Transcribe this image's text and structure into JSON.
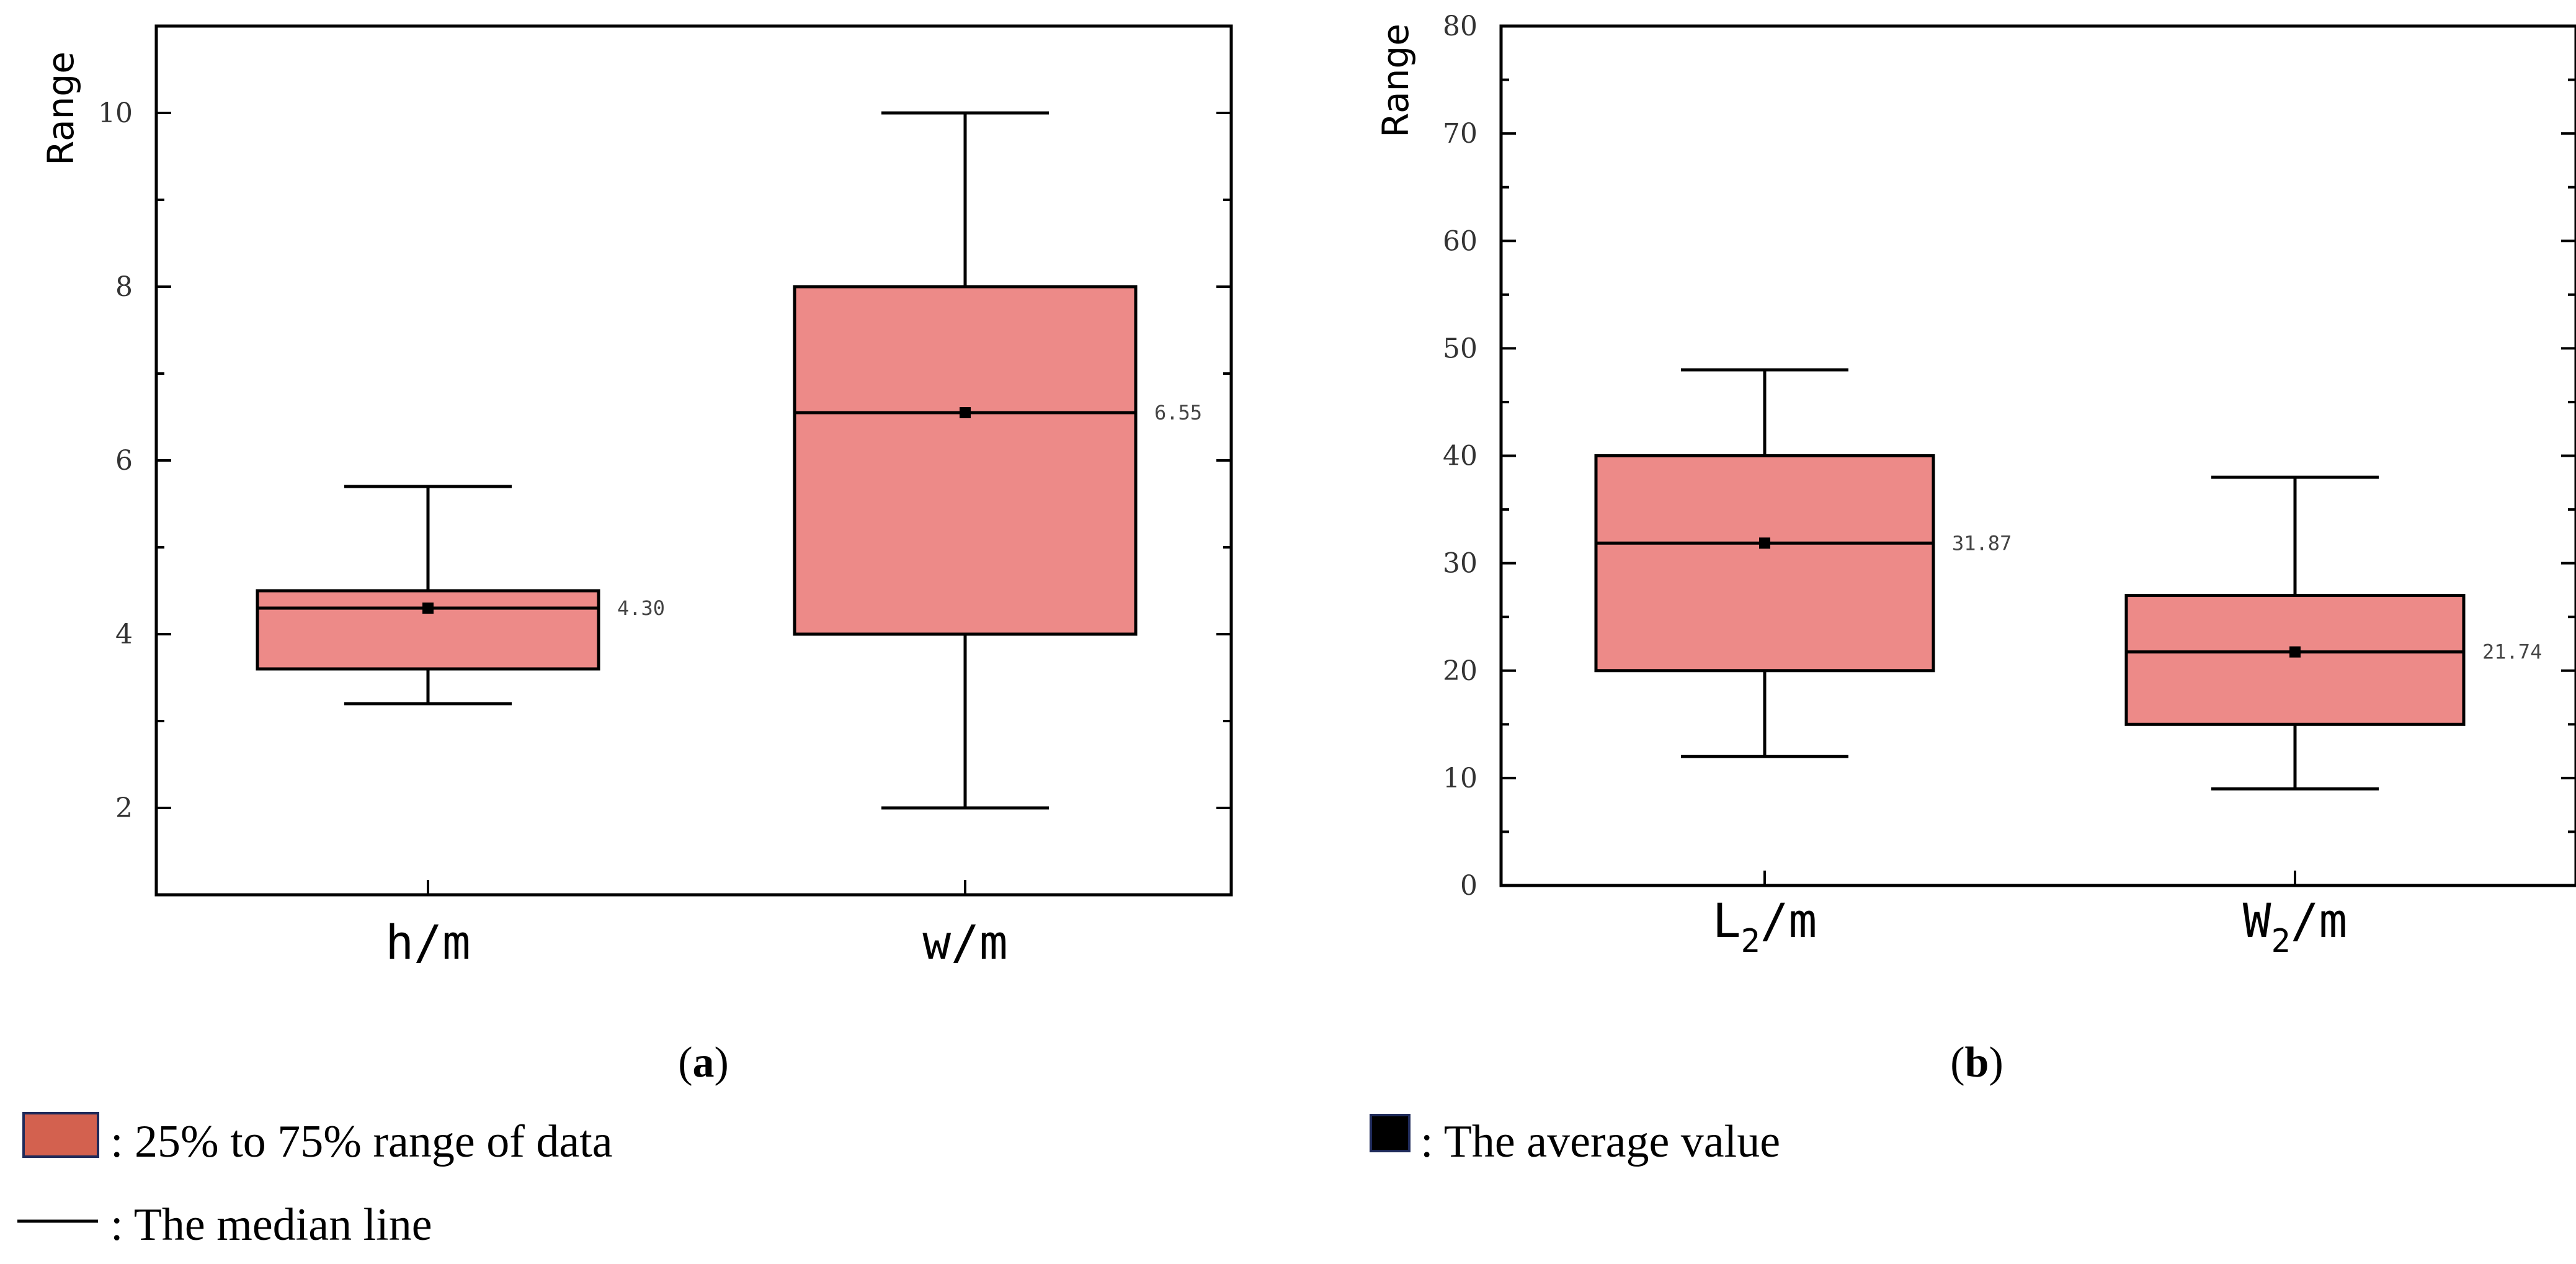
{
  "chart_data": [
    {
      "id": "a",
      "type": "box",
      "caption": "a",
      "ylabel": "Range",
      "ylim": [
        1,
        11
      ],
      "yticks": [
        2,
        4,
        6,
        8,
        10
      ],
      "minor_ticks": true,
      "boxes": [
        {
          "name": "h/m",
          "label_main": "h/m",
          "label_sub": "",
          "label_suffix": "",
          "whisker_low": 3.2,
          "q1": 3.6,
          "median": 4.3,
          "q3": 4.5,
          "whisker_high": 5.7,
          "mean": 4.3,
          "mean_label": "4.30"
        },
        {
          "name": "w/m",
          "label_main": "w/m",
          "label_sub": "",
          "label_suffix": "",
          "whisker_low": 2.0,
          "q1": 4.0,
          "median": 6.55,
          "q3": 8.0,
          "whisker_high": 10.0,
          "mean": 6.55,
          "mean_label": "6.55"
        }
      ]
    },
    {
      "id": "b",
      "type": "box",
      "caption": "b",
      "ylabel": "Range",
      "ylim": [
        0,
        80
      ],
      "yticks": [
        0,
        10,
        20,
        30,
        40,
        50,
        60,
        70,
        80
      ],
      "minor_ticks": true,
      "boxes": [
        {
          "name": "L2/m",
          "label_main": "L",
          "label_sub": "2",
          "label_suffix": "/m",
          "whisker_low": 12,
          "q1": 20,
          "median": 31.87,
          "q3": 40,
          "whisker_high": 48,
          "mean": 31.87,
          "mean_label": "31.87"
        },
        {
          "name": "W2/m",
          "label_main": "W",
          "label_sub": "2",
          "label_suffix": "/m",
          "whisker_low": 9,
          "q1": 15,
          "median": 21.74,
          "q3": 27,
          "whisker_high": 38,
          "mean": 21.74,
          "mean_label": "21.74"
        }
      ]
    }
  ],
  "legend": {
    "box_text": ": 25% to 75% range of data",
    "mean_text": ": The average value",
    "median_text": ": The median line"
  },
  "colors": {
    "box_fill": "#ED8A88",
    "legend_box": "#D3614F",
    "legend_box_border": "#1F2A5A",
    "mean_marker": "#000000"
  }
}
